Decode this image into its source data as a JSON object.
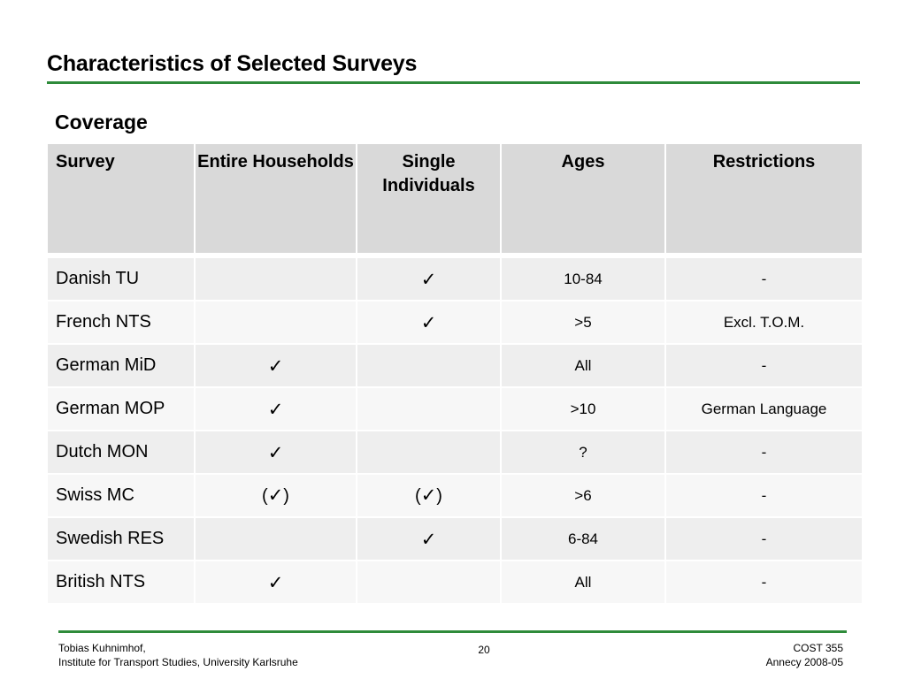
{
  "title": "Characteristics of Selected Surveys",
  "section": "Coverage",
  "check_glyph": "✓",
  "table": {
    "headers": [
      "Survey",
      "Entire Households",
      "Single Individuals",
      "Ages",
      "Restrictions"
    ],
    "rows": [
      {
        "survey": "Danish TU",
        "households": "",
        "individuals": "check",
        "ages": "10-84",
        "restrictions": "-"
      },
      {
        "survey": "French NTS",
        "households": "",
        "individuals": "check",
        "ages": ">5",
        "restrictions": "Excl. T.O.M."
      },
      {
        "survey": "German MiD",
        "households": "check",
        "individuals": "",
        "ages": "All",
        "restrictions": "-"
      },
      {
        "survey": "German MOP",
        "households": "check",
        "individuals": "",
        "ages": ">10",
        "restrictions": "German Language"
      },
      {
        "survey": "Dutch MON",
        "households": "check",
        "individuals": "",
        "ages": "?",
        "restrictions": "-"
      },
      {
        "survey": "Swiss MC",
        "households": "(check)",
        "individuals": "(check)",
        "ages": ">6",
        "restrictions": "-"
      },
      {
        "survey": "Swedish RES",
        "households": "",
        "individuals": "check",
        "ages": "6-84",
        "restrictions": "-"
      },
      {
        "survey": "British NTS",
        "households": "check",
        "individuals": "",
        "ages": "All",
        "restrictions": "-"
      }
    ]
  },
  "footer": {
    "author": "Tobias Kuhnimhof,",
    "institute": "Institute for Transport Studies, University Karlsruhe",
    "page": "20",
    "conference": "COST 355",
    "event": "Annecy 2008-05"
  }
}
